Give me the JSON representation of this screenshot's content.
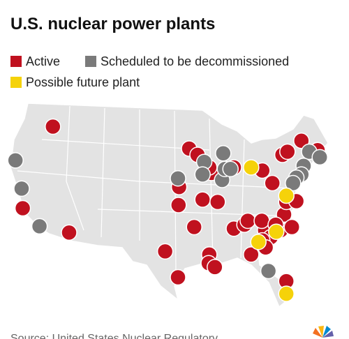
{
  "title": "U.S. nuclear power plants",
  "legend": [
    {
      "label": "Active",
      "color": "#c0111f"
    },
    {
      "label": "Scheduled to be decommissioned",
      "color": "#7a7a7a"
    },
    {
      "label": "Possible future plant",
      "color": "#f5d20a"
    }
  ],
  "source": "Source: United States Nuclear Regulatory",
  "plants": [
    {
      "lon": -116.9,
      "lat": 46.2,
      "status": 0
    },
    {
      "lon": -122.3,
      "lat": 35.8,
      "status": 0
    },
    {
      "lon": -114.0,
      "lat": 32.7,
      "status": 0
    },
    {
      "lon": -94.3,
      "lat": 38.5,
      "status": 0
    },
    {
      "lon": -94.4,
      "lat": 36.2,
      "status": 0
    },
    {
      "lon": -92.5,
      "lat": 43.4,
      "status": 0
    },
    {
      "lon": -91.0,
      "lat": 42.6,
      "status": 0
    },
    {
      "lon": -88.5,
      "lat": 40.3,
      "status": 0
    },
    {
      "lon": -90.1,
      "lat": 36.9,
      "status": 0
    },
    {
      "lon": -87.4,
      "lat": 36.6,
      "status": 0
    },
    {
      "lon": -91.6,
      "lat": 33.4,
      "status": 0
    },
    {
      "lon": -96.8,
      "lat": 30.3,
      "status": 0
    },
    {
      "lon": -94.5,
      "lat": 27.0,
      "status": 0
    },
    {
      "lon": -88.9,
      "lat": 29.9,
      "status": 0
    },
    {
      "lon": -89.0,
      "lat": 28.8,
      "status": 0
    },
    {
      "lon": -87.9,
      "lat": 28.3,
      "status": 0
    },
    {
      "lon": -84.5,
      "lat": 33.2,
      "status": 0
    },
    {
      "lon": -82.6,
      "lat": 33.7,
      "status": 0
    },
    {
      "lon": -82.0,
      "lat": 34.2,
      "status": 0
    },
    {
      "lon": -81.4,
      "lat": 29.9,
      "status": 0
    },
    {
      "lon": -78.9,
      "lat": 33.0,
      "status": 0
    },
    {
      "lon": -77.9,
      "lat": 32.1,
      "status": 0
    },
    {
      "lon": -79.4,
      "lat": 31.7,
      "status": 0
    },
    {
      "lon": -78.8,
      "lat": 30.8,
      "status": 0
    },
    {
      "lon": -76.1,
      "lat": 33.0,
      "status": 0
    },
    {
      "lon": -75.5,
      "lat": 35.0,
      "status": 0
    },
    {
      "lon": -74.1,
      "lat": 33.4,
      "status": 0
    },
    {
      "lon": -75.1,
      "lat": 36.6,
      "status": 0
    },
    {
      "lon": -73.3,
      "lat": 36.7,
      "status": 0
    },
    {
      "lon": -77.6,
      "lat": 39.0,
      "status": 0
    },
    {
      "lon": -79.4,
      "lat": 40.6,
      "status": 0
    },
    {
      "lon": -84.5,
      "lat": 41.0,
      "status": 0
    },
    {
      "lon": -75.8,
      "lat": 42.6,
      "status": 0
    },
    {
      "lon": -74.9,
      "lat": 43.0,
      "status": 0
    },
    {
      "lon": -72.4,
      "lat": 44.4,
      "status": 0
    },
    {
      "lon": -69.5,
      "lat": 43.2,
      "status": 0
    },
    {
      "lon": -88.9,
      "lat": 41.0,
      "status": 0
    },
    {
      "lon": -75.1,
      "lat": 26.5,
      "status": 0
    },
    {
      "lon": -79.5,
      "lat": 34.2,
      "status": 0
    },
    {
      "lon": -77.0,
      "lat": 33.7,
      "status": 0
    },
    {
      "lon": -123.6,
      "lat": 41.9,
      "status": 1
    },
    {
      "lon": -122.5,
      "lat": 38.3,
      "status": 1
    },
    {
      "lon": -119.3,
      "lat": 33.5,
      "status": 1
    },
    {
      "lon": -94.5,
      "lat": 39.6,
      "status": 1
    },
    {
      "lon": -89.8,
      "lat": 41.7,
      "status": 1
    },
    {
      "lon": -90.1,
      "lat": 40.1,
      "status": 1
    },
    {
      "lon": -86.4,
      "lat": 42.8,
      "status": 1
    },
    {
      "lon": -86.6,
      "lat": 39.4,
      "status": 1
    },
    {
      "lon": -86.1,
      "lat": 40.8,
      "status": 1
    },
    {
      "lon": -78.3,
      "lat": 27.8,
      "status": 1
    },
    {
      "lon": -71.0,
      "lat": 43.0,
      "status": 1
    },
    {
      "lon": -69.1,
      "lat": 42.3,
      "status": 1
    },
    {
      "lon": -72.0,
      "lat": 41.2,
      "status": 1
    },
    {
      "lon": -72.4,
      "lat": 40.1,
      "status": 1
    },
    {
      "lon": -73.3,
      "lat": 39.7,
      "status": 1
    },
    {
      "lon": -73.9,
      "lat": 39.0,
      "status": 1
    },
    {
      "lon": -85.1,
      "lat": 40.8,
      "status": 1
    },
    {
      "lon": -81.4,
      "lat": 41.0,
      "status": 2
    },
    {
      "lon": -75.1,
      "lat": 37.4,
      "status": 2
    },
    {
      "lon": -80.1,
      "lat": 31.5,
      "status": 2
    },
    {
      "lon": -76.9,
      "lat": 32.8,
      "status": 2
    },
    {
      "lon": -75.1,
      "lat": 24.9,
      "status": 2
    }
  ]
}
